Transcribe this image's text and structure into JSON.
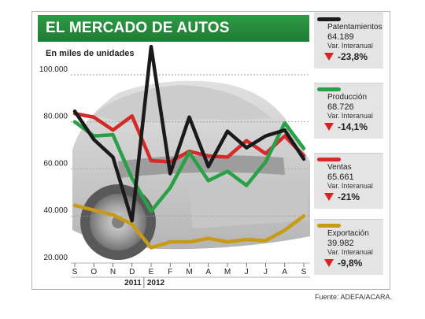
{
  "title": "EL MERCADO DE AUTOS",
  "subtitle": "En miles de unidades",
  "source": "Fuente: ADEFA/ACARA.",
  "chart_data": {
    "type": "line",
    "categories": [
      "S",
      "O",
      "N",
      "D",
      "E",
      "F",
      "M",
      "A",
      "M",
      "J",
      "J",
      "A",
      "S"
    ],
    "year_labels": [
      "2011",
      "2012"
    ],
    "ylim": [
      20000,
      105000
    ],
    "yticks": [
      20000,
      40000,
      60000,
      80000,
      100000
    ],
    "ytick_labels": [
      "20.000",
      "40.000",
      "60.000",
      "80.000",
      "100.000"
    ],
    "grid": true,
    "legend_position": "right",
    "series": [
      {
        "name": "Patentamientos",
        "color": "#1a1a1a",
        "latest": "64.189",
        "var_label": "Var. Interanual",
        "var": "-23,8%",
        "values": [
          84500,
          72500,
          65000,
          38000,
          112000,
          58000,
          82000,
          61000,
          76000,
          69000,
          74000,
          76500,
          64200
        ]
      },
      {
        "name": "Producción",
        "color": "#27a046",
        "latest": "68.726",
        "var_label": "Var. Interanual",
        "var": "-14,1%",
        "values": [
          80000,
          74000,
          74500,
          56000,
          42000,
          52000,
          67000,
          55000,
          59000,
          53000,
          63000,
          79500,
          68700
        ]
      },
      {
        "name": "Ventas",
        "color": "#d42a2a",
        "latest": "65.661",
        "var_label": "Var. Interanual",
        "var": "-21%",
        "values": [
          83500,
          82000,
          76500,
          82500,
          63500,
          63000,
          67500,
          65500,
          65000,
          72000,
          66500,
          74000,
          65600
        ]
      },
      {
        "name": "Exportación",
        "color": "#c99a16",
        "latest": "39.982",
        "var_label": "Var. Interanual",
        "var": "-9,8%",
        "values": [
          44500,
          42500,
          40500,
          36500,
          26500,
          29000,
          29000,
          30500,
          29000,
          30000,
          29500,
          34000,
          40000
        ]
      }
    ]
  }
}
